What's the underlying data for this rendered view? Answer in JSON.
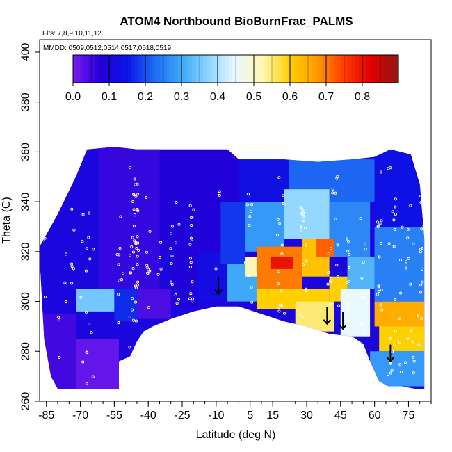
{
  "chart_data": {
    "type": "heatmap",
    "title": "ATOM4 Northbound BioBurnFrac_PALMS",
    "flights_note": "Flts: 7,8,9,10,11,12",
    "dates_note": "MMDD: 0509,0512,0514,0517,0518,0519",
    "xlabel": "Latitude (deg N)",
    "ylabel": "Theta (C)",
    "xlim": [
      -88,
      85
    ],
    "ylim": [
      260,
      405
    ],
    "x_ticks": [
      -85,
      -70,
      -55,
      -40,
      -25,
      -10,
      5,
      15,
      30,
      45,
      60,
      75
    ],
    "x_tick_labels": [
      "-85",
      "-70",
      "-55",
      "-40",
      "-25",
      "-10",
      "5",
      "15",
      "30",
      "45",
      "60",
      "75"
    ],
    "y_ticks": [
      260,
      280,
      300,
      320,
      340,
      360,
      380,
      400
    ],
    "y_tick_labels": [
      "260",
      "280",
      "300",
      "320",
      "340",
      "360",
      "380",
      "400"
    ],
    "colorbar": {
      "ticks": [
        0.0,
        0.1,
        0.2,
        0.3,
        0.4,
        0.5,
        0.6,
        0.7,
        0.8
      ],
      "tick_labels": [
        "0.0",
        "0.1",
        "0.2",
        "0.3",
        "0.4",
        "0.5",
        "0.6",
        "0.7",
        "0.8"
      ],
      "range": [
        0.0,
        0.9
      ],
      "colors": [
        "#7a1cf0",
        "#2400d8",
        "#0a14e6",
        "#1e6cf4",
        "#3fa8f8",
        "#8fd6ff",
        "#eaf8ff",
        "#fff6b0",
        "#ffd000",
        "#ff9a00",
        "#ff3a00",
        "#e00000",
        "#8c1a14"
      ]
    },
    "upper_boundary_theta": [
      {
        "lat": -88,
        "theta": 322
      },
      {
        "lat": -80,
        "theta": 335
      },
      {
        "lat": -72,
        "theta": 350
      },
      {
        "lat": -67,
        "theta": 361
      },
      {
        "lat": -55,
        "theta": 362
      },
      {
        "lat": -45,
        "theta": 361
      },
      {
        "lat": -30,
        "theta": 361
      },
      {
        "lat": -5,
        "theta": 361
      },
      {
        "lat": 0,
        "theta": 357
      },
      {
        "lat": 20,
        "theta": 357
      },
      {
        "lat": 35,
        "theta": 356
      },
      {
        "lat": 50,
        "theta": 357
      },
      {
        "lat": 60,
        "theta": 358
      },
      {
        "lat": 67,
        "theta": 361
      },
      {
        "lat": 76,
        "theta": 359
      },
      {
        "lat": 80,
        "theta": 347
      },
      {
        "lat": 82,
        "theta": 325
      },
      {
        "lat": 82,
        "theta": 290
      }
    ],
    "lower_boundary_theta": [
      {
        "lat": -88,
        "theta": 318
      },
      {
        "lat": -86,
        "theta": 285
      },
      {
        "lat": -83,
        "theta": 270
      },
      {
        "lat": -80,
        "theta": 265
      },
      {
        "lat": -53,
        "theta": 265
      },
      {
        "lat": -53,
        "theta": 276
      },
      {
        "lat": -48,
        "theta": 278
      },
      {
        "lat": -45,
        "theta": 284
      },
      {
        "lat": -42,
        "theta": 288
      },
      {
        "lat": -38,
        "theta": 290
      },
      {
        "lat": -30,
        "theta": 293
      },
      {
        "lat": -20,
        "theta": 296
      },
      {
        "lat": -10,
        "theta": 298
      },
      {
        "lat": 0,
        "theta": 298
      },
      {
        "lat": 10,
        "theta": 295
      },
      {
        "lat": 20,
        "theta": 292
      },
      {
        "lat": 30,
        "theta": 290
      },
      {
        "lat": 40,
        "theta": 287
      },
      {
        "lat": 50,
        "theta": 286
      },
      {
        "lat": 55,
        "theta": 283
      },
      {
        "lat": 58,
        "theta": 276
      },
      {
        "lat": 62,
        "theta": 268
      },
      {
        "lat": 66,
        "theta": 266
      },
      {
        "lat": 72,
        "theta": 266
      },
      {
        "lat": 78,
        "theta": 265
      },
      {
        "lat": 82,
        "theta": 265
      }
    ],
    "field_regions": [
      {
        "lat": [
          -88,
          -62
        ],
        "theta": [
          295,
          360
        ],
        "value": 0.1
      },
      {
        "lat": [
          -62,
          -35
        ],
        "theta": [
          305,
          362
        ],
        "value": 0.06
      },
      {
        "lat": [
          -35,
          0
        ],
        "theta": [
          320,
          361
        ],
        "value": 0.08
      },
      {
        "lat": [
          0,
          22
        ],
        "theta": [
          340,
          357
        ],
        "value": 0.13
      },
      {
        "lat": [
          22,
          60
        ],
        "theta": [
          340,
          357
        ],
        "value": 0.22
      },
      {
        "lat": [
          60,
          82
        ],
        "theta": [
          330,
          361
        ],
        "value": 0.14
      },
      {
        "lat": [
          -88,
          -72
        ],
        "theta": [
          265,
          295
        ],
        "value": 0.05
      },
      {
        "lat": [
          -72,
          -53
        ],
        "theta": [
          265,
          285
        ],
        "value": 0.02
      },
      {
        "lat": [
          -72,
          -55
        ],
        "theta": [
          296,
          305
        ],
        "value": 0.35
      },
      {
        "lat": [
          -55,
          -45
        ],
        "theta": [
          292,
          305
        ],
        "value": 0.17
      },
      {
        "lat": [
          -45,
          -30
        ],
        "theta": [
          293,
          305
        ],
        "value": 0.04
      },
      {
        "lat": [
          -30,
          -18
        ],
        "theta": [
          298,
          320
        ],
        "value": 0.08
      },
      {
        "lat": [
          -18,
          -5
        ],
        "theta": [
          300,
          320
        ],
        "value": 0.12
      },
      {
        "lat": [
          -5,
          8
        ],
        "theta": [
          300,
          315
        ],
        "value": 0.3
      },
      {
        "lat": [
          -8,
          3
        ],
        "theta": [
          315,
          340
        ],
        "value": 0.18
      },
      {
        "lat": [
          3,
          20
        ],
        "theta": [
          320,
          340
        ],
        "value": 0.28
      },
      {
        "lat": [
          20,
          40
        ],
        "theta": [
          325,
          345
        ],
        "value": 0.38
      },
      {
        "lat": [
          40,
          58
        ],
        "theta": [
          318,
          340
        ],
        "value": 0.26
      },
      {
        "lat": [
          3,
          12
        ],
        "theta": [
          310,
          318
        ],
        "value": 0.52
      },
      {
        "lat": [
          8,
          28
        ],
        "theta": [
          305,
          322
        ],
        "value": 0.7
      },
      {
        "lat": [
          14,
          24
        ],
        "theta": [
          313,
          318
        ],
        "value": 0.8
      },
      {
        "lat": [
          28,
          40
        ],
        "theta": [
          310,
          325
        ],
        "value": 0.62
      },
      {
        "lat": [
          34,
          42
        ],
        "theta": [
          318,
          325
        ],
        "value": 0.72
      },
      {
        "lat": [
          8,
          40
        ],
        "theta": [
          297,
          305
        ],
        "value": 0.6
      },
      {
        "lat": [
          25,
          42
        ],
        "theta": [
          288,
          300
        ],
        "value": 0.55
      },
      {
        "lat": [
          40,
          48
        ],
        "theta": [
          300,
          310
        ],
        "value": 0.6
      },
      {
        "lat": [
          45,
          58
        ],
        "theta": [
          286,
          305
        ],
        "value": 0.45
      },
      {
        "lat": [
          48,
          60
        ],
        "theta": [
          305,
          318
        ],
        "value": 0.32
      },
      {
        "lat": [
          60,
          82
        ],
        "theta": [
          290,
          300
        ],
        "value": 0.65
      },
      {
        "lat": [
          62,
          82
        ],
        "theta": [
          280,
          290
        ],
        "value": 0.6
      },
      {
        "lat": [
          60,
          82
        ],
        "theta": [
          300,
          330
        ],
        "value": 0.25
      },
      {
        "lat": [
          58,
          82
        ],
        "theta": [
          266,
          280
        ],
        "value": 0.28
      }
    ],
    "arrows": [
      {
        "lat": -9,
        "theta": 303
      },
      {
        "lat": 39,
        "theta": 291
      },
      {
        "lat": 46,
        "theta": 289
      },
      {
        "lat": 67,
        "theta": 276
      }
    ],
    "sample_point_color": "#ffffff"
  }
}
